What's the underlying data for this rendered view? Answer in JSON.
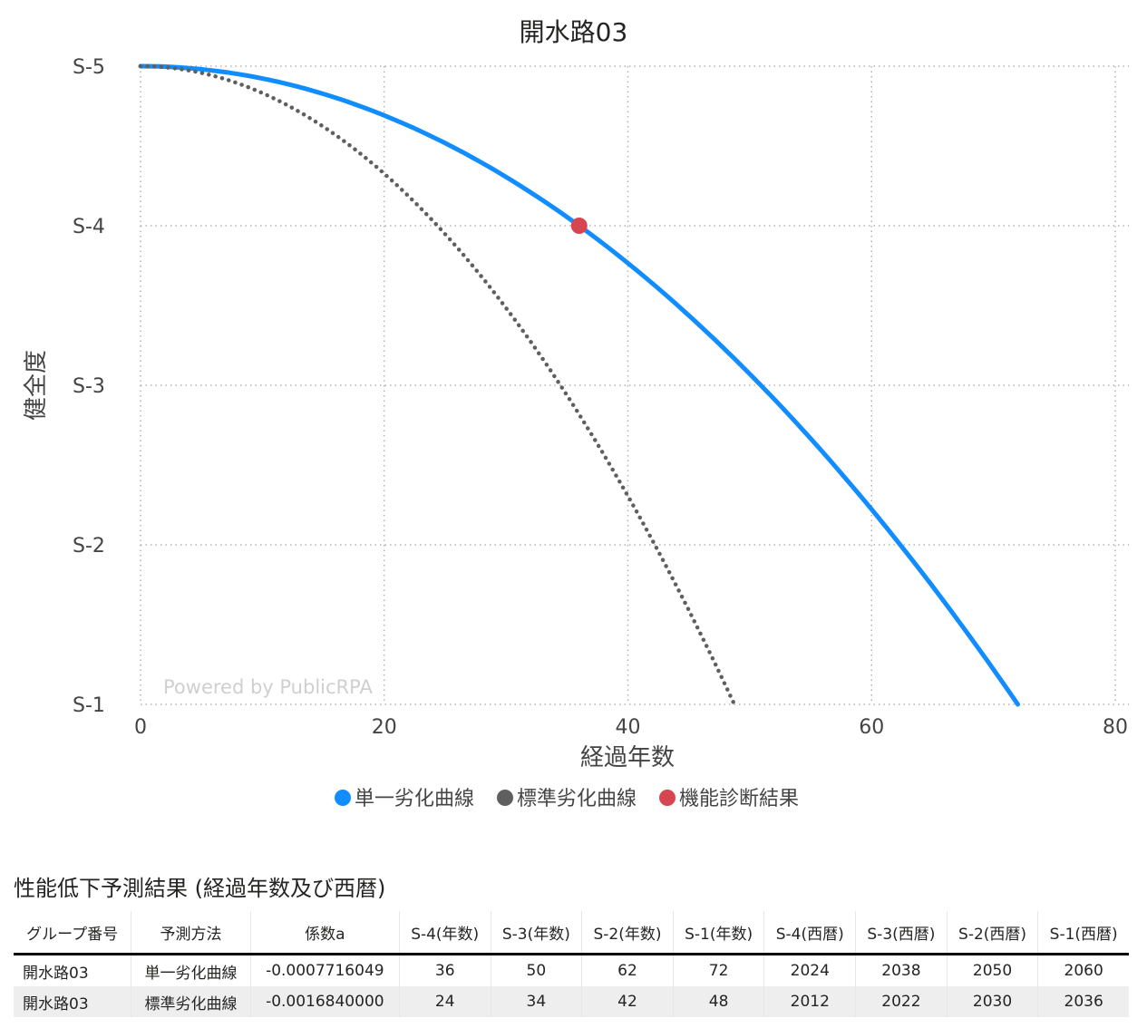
{
  "chart_data": {
    "type": "line",
    "title": "開水路03",
    "xlabel": "経過年数",
    "ylabel": "健全度",
    "xlim": [
      0,
      80
    ],
    "ylim": [
      1,
      5
    ],
    "x_ticks": [
      "0",
      "20",
      "40",
      "60",
      "80"
    ],
    "y_ticks": [
      "S-5",
      "S-4",
      "S-3",
      "S-2",
      "S-1"
    ],
    "grid": true,
    "legend_position": "bottom",
    "watermark": "Powered by PublicRPA",
    "series": [
      {
        "name": "単一劣化曲線",
        "style": "solid",
        "color": "#118DFF",
        "coef": -0.0007716049,
        "x": [
          0,
          10,
          20,
          30,
          36,
          40,
          50,
          60,
          62,
          70,
          72
        ],
        "y": [
          5.0,
          4.92,
          4.69,
          4.31,
          4.0,
          3.77,
          3.07,
          2.22,
          2.03,
          1.22,
          1.0
        ]
      },
      {
        "name": "標準劣化曲線",
        "style": "dotted",
        "color": "#5F5F5F",
        "coef": -0.001684,
        "x": [
          0,
          10,
          20,
          24,
          30,
          34,
          40,
          42,
          48
        ],
        "y": [
          5.0,
          4.83,
          4.33,
          4.03,
          3.48,
          3.05,
          2.31,
          2.03,
          1.12
        ]
      },
      {
        "name": "機能診断結果",
        "style": "marker",
        "color": "#D64550",
        "x": [
          36
        ],
        "y": [
          4.0
        ]
      }
    ]
  },
  "table": {
    "title": "性能低下予測結果 (経過年数及び西暦)",
    "columns": [
      "グループ番号",
      "予測方法",
      "係数a",
      "S-4(年数)",
      "S-3(年数)",
      "S-2(年数)",
      "S-1(年数)",
      "S-4(西暦)",
      "S-3(西暦)",
      "S-2(西暦)",
      "S-1(西暦)"
    ],
    "rows": [
      [
        "開水路03",
        "単一劣化曲線",
        "-0.0007716049",
        "36",
        "50",
        "62",
        "72",
        "2024",
        "2038",
        "2050",
        "2060"
      ],
      [
        "開水路03",
        "標準劣化曲線",
        "-0.0016840000",
        "24",
        "34",
        "42",
        "48",
        "2012",
        "2022",
        "2030",
        "2036"
      ]
    ]
  }
}
